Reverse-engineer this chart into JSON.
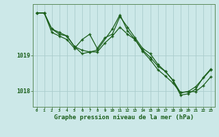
{
  "title": "Graphe pression niveau de la mer (hPa)",
  "background_color": "#cce8e8",
  "grid_color": "#aacccc",
  "line_color": "#1a5e1a",
  "marker_color": "#1a5e1a",
  "yticks": [
    1018,
    1019
  ],
  "ylim": [
    1017.55,
    1020.45
  ],
  "xlim": [
    -0.5,
    23.5
  ],
  "xticks": [
    0,
    1,
    2,
    3,
    4,
    5,
    6,
    7,
    8,
    9,
    10,
    11,
    12,
    13,
    14,
    15,
    16,
    17,
    18,
    19,
    20,
    21,
    22,
    23
  ],
  "series": [
    {
      "x": [
        0,
        1,
        2,
        3,
        4,
        5,
        6,
        7,
        8,
        9,
        10,
        11,
        12,
        13,
        14,
        15,
        16,
        17,
        18,
        19,
        20,
        21,
        22,
        23
      ],
      "y": [
        1020.2,
        1020.2,
        1019.75,
        1019.6,
        1019.55,
        1019.25,
        1019.15,
        1019.1,
        1019.1,
        1019.35,
        1019.55,
        1019.8,
        1019.6,
        1019.45,
        1019.15,
        1018.95,
        1018.7,
        1018.55,
        1018.3,
        1017.95,
        1017.98,
        1017.98,
        1018.15,
        1018.4
      ]
    },
    {
      "x": [
        0,
        1,
        2,
        3,
        4,
        5,
        6,
        7,
        8,
        9,
        10,
        11,
        12,
        13,
        14,
        15,
        16,
        17,
        18,
        19,
        20,
        21,
        22,
        23
      ],
      "y": [
        1020.2,
        1020.2,
        1019.65,
        1019.55,
        1019.45,
        1019.2,
        1019.45,
        1019.6,
        1019.2,
        1019.5,
        1019.6,
        1020.1,
        1019.8,
        1019.5,
        1019.2,
        1019.05,
        1018.75,
        1018.55,
        1018.3,
        1017.88,
        1017.92,
        1018.05,
        1018.38,
        1018.62
      ]
    },
    {
      "x": [
        0,
        1,
        2,
        3,
        4,
        5,
        6,
        7,
        8,
        10,
        11,
        12,
        13,
        14,
        15,
        16,
        17,
        18,
        19,
        20,
        21,
        23
      ],
      "y": [
        1020.2,
        1020.2,
        1019.75,
        1019.65,
        1019.55,
        1019.25,
        1019.05,
        1019.1,
        1019.15,
        1019.75,
        1020.15,
        1019.7,
        1019.45,
        1019.12,
        1018.88,
        1018.6,
        1018.42,
        1018.22,
        1017.95,
        1017.98,
        1018.12,
        1018.6
      ]
    }
  ]
}
